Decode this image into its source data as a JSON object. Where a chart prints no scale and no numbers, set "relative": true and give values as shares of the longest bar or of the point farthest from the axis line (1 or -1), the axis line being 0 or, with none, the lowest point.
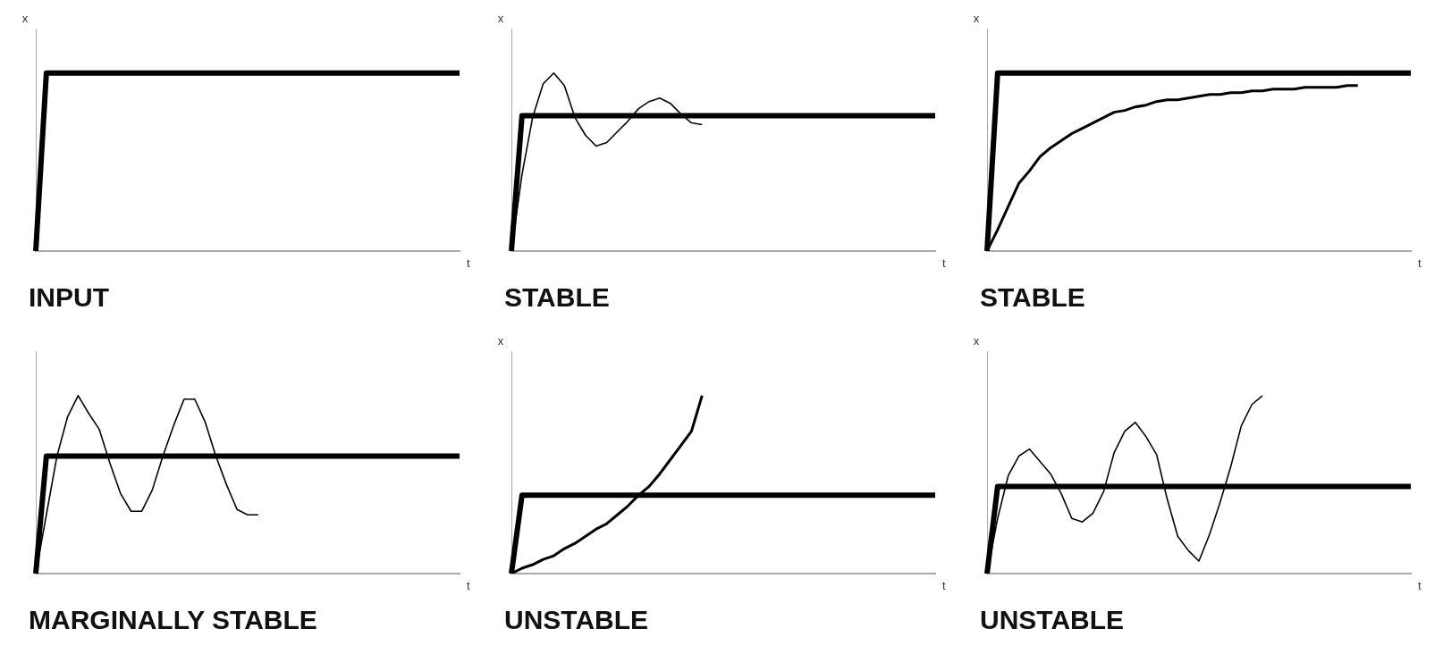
{
  "chart_data": [
    {
      "type": "line",
      "relative": true,
      "title": "INPUT",
      "xlabel": "t",
      "ylabel": "x",
      "categories": [
        null,
        null,
        null,
        null,
        null,
        null,
        null,
        null,
        null,
        null,
        null,
        null,
        null,
        null,
        null,
        null,
        null,
        null,
        null,
        null,
        null,
        null,
        null,
        null,
        null,
        null,
        null,
        null,
        null,
        null,
        null,
        null,
        null,
        null,
        null,
        null,
        null,
        null,
        null,
        null,
        null
      ],
      "series": [
        {
          "color": "#000000",
          "values": [
            0,
            1,
            1,
            1,
            1,
            1,
            1,
            1,
            1,
            1,
            1,
            1,
            1,
            1,
            1,
            1,
            1,
            1,
            1,
            1,
            1,
            1,
            1,
            1,
            1,
            1,
            1,
            1,
            1,
            1,
            1,
            1,
            1,
            1,
            1,
            1,
            1,
            1,
            1,
            1,
            1
          ]
        }
      ]
    },
    {
      "type": "line",
      "relative": true,
      "title": "STABLE",
      "xlabel": "t",
      "ylabel": "x",
      "categories": [
        null,
        null,
        null,
        null,
        null,
        null,
        null,
        null,
        null,
        null,
        null,
        null,
        null,
        null,
        null,
        null,
        null,
        null,
        null,
        null,
        null,
        null,
        null,
        null,
        null,
        null,
        null,
        null,
        null,
        null,
        null,
        null,
        null,
        null,
        null,
        null,
        null,
        null,
        null,
        null,
        null
      ],
      "series": [
        {
          "color": "#000000",
          "values": [
            0,
            0.76,
            0.76,
            0.76,
            0.76,
            0.76,
            0.76,
            0.76,
            0.76,
            0.76,
            0.76,
            0.76,
            0.76,
            0.76,
            0.76,
            0.76,
            0.76,
            0.76,
            0.76,
            0.76,
            0.76,
            0.76,
            0.76,
            0.76,
            0.76,
            0.76,
            0.76,
            0.76,
            0.76,
            0.76,
            0.76,
            0.76,
            0.76,
            0.76,
            0.76,
            0.76,
            0.76,
            0.76,
            0.76,
            0.76,
            0.76
          ]
        },
        {
          "color": "#000000",
          "values": [
            0,
            0.43,
            0.75,
            0.94,
            1,
            0.93,
            0.75,
            0.65,
            0.59,
            0.61,
            0.67,
            0.73,
            0.8,
            0.84,
            0.86,
            0.83,
            0.77,
            0.72,
            0.71,
            null,
            null,
            null,
            null,
            null,
            null,
            null,
            null,
            null,
            null,
            null,
            null,
            null,
            null,
            null,
            null,
            null,
            null,
            null,
            null,
            null,
            null
          ]
        }
      ]
    },
    {
      "type": "line",
      "relative": true,
      "title": "STABLE",
      "xlabel": "t",
      "ylabel": "x",
      "categories": [
        null,
        null,
        null,
        null,
        null,
        null,
        null,
        null,
        null,
        null,
        null,
        null,
        null,
        null,
        null,
        null,
        null,
        null,
        null,
        null,
        null,
        null,
        null,
        null,
        null,
        null,
        null,
        null,
        null,
        null,
        null,
        null,
        null,
        null,
        null,
        null,
        null,
        null,
        null,
        null,
        null
      ],
      "series": [
        {
          "color": "#000000",
          "values": [
            0,
            1,
            1,
            1,
            1,
            1,
            1,
            1,
            1,
            1,
            1,
            1,
            1,
            1,
            1,
            1,
            1,
            1,
            1,
            1,
            1,
            1,
            1,
            1,
            1,
            1,
            1,
            1,
            1,
            1,
            1,
            1,
            1,
            1,
            1,
            1,
            1,
            1,
            1,
            1,
            1
          ]
        },
        {
          "color": "#000000",
          "values": [
            0,
            0.12,
            0.25,
            0.38,
            0.45,
            0.53,
            0.58,
            0.62,
            0.66,
            0.69,
            0.72,
            0.75,
            0.78,
            0.79,
            0.81,
            0.82,
            0.84,
            0.85,
            0.85,
            0.86,
            0.87,
            0.88,
            0.88,
            0.89,
            0.89,
            0.9,
            0.9,
            0.91,
            0.91,
            0.91,
            0.92,
            0.92,
            0.92,
            0.92,
            0.93,
            0.93,
            null,
            null,
            null,
            null,
            null
          ]
        }
      ]
    },
    {
      "type": "line",
      "relative": true,
      "title": "MARGINALLY STABLE",
      "xlabel": "t",
      "categories": [
        null,
        null,
        null,
        null,
        null,
        null,
        null,
        null,
        null,
        null,
        null,
        null,
        null,
        null,
        null,
        null,
        null,
        null,
        null,
        null,
        null,
        null,
        null,
        null,
        null,
        null,
        null,
        null,
        null,
        null,
        null,
        null,
        null,
        null,
        null,
        null,
        null,
        null,
        null,
        null,
        null
      ],
      "series": [
        {
          "color": "#000000",
          "values": [
            0,
            0.66,
            0.66,
            0.66,
            0.66,
            0.66,
            0.66,
            0.66,
            0.66,
            0.66,
            0.66,
            0.66,
            0.66,
            0.66,
            0.66,
            0.66,
            0.66,
            0.66,
            0.66,
            0.66,
            0.66,
            0.66,
            0.66,
            0.66,
            0.66,
            0.66,
            0.66,
            0.66,
            0.66,
            0.66,
            0.66,
            0.66,
            0.66,
            0.66,
            0.66,
            0.66,
            0.66,
            0.66,
            0.66,
            0.66,
            0.66
          ]
        },
        {
          "color": "#000000",
          "values": [
            0,
            0.33,
            0.66,
            0.88,
            1,
            0.9,
            0.81,
            0.62,
            0.45,
            0.35,
            0.35,
            0.47,
            0.66,
            0.83,
            0.98,
            0.98,
            0.85,
            0.66,
            0.5,
            0.36,
            0.33,
            0.33,
            null,
            null,
            null,
            null,
            null,
            null,
            null,
            null,
            null,
            null,
            null,
            null,
            null,
            null,
            null,
            null,
            null,
            null,
            null
          ]
        }
      ]
    },
    {
      "type": "line",
      "relative": true,
      "title": "UNSTABLE",
      "xlabel": "t",
      "ylabel": "x",
      "categories": [
        null,
        null,
        null,
        null,
        null,
        null,
        null,
        null,
        null,
        null,
        null,
        null,
        null,
        null,
        null,
        null,
        null,
        null,
        null,
        null,
        null,
        null,
        null,
        null,
        null,
        null,
        null,
        null,
        null,
        null,
        null,
        null,
        null,
        null,
        null,
        null,
        null,
        null,
        null,
        null,
        null
      ],
      "series": [
        {
          "color": "#000000",
          "values": [
            0,
            0.44,
            0.44,
            0.44,
            0.44,
            0.44,
            0.44,
            0.44,
            0.44,
            0.44,
            0.44,
            0.44,
            0.44,
            0.44,
            0.44,
            0.44,
            0.44,
            0.44,
            0.44,
            0.44,
            0.44,
            0.44,
            0.44,
            0.44,
            0.44,
            0.44,
            0.44,
            0.44,
            0.44,
            0.44,
            0.44,
            0.44,
            0.44,
            0.44,
            0.44,
            0.44,
            0.44,
            0.44,
            0.44,
            0.44,
            0.44
          ]
        },
        {
          "color": "#000000",
          "values": [
            0,
            0.03,
            0.05,
            0.08,
            0.1,
            0.14,
            0.17,
            0.21,
            0.25,
            0.28,
            0.33,
            0.38,
            0.44,
            0.49,
            0.56,
            0.64,
            0.72,
            0.8,
            1,
            null,
            null,
            null,
            null,
            null,
            null,
            null,
            null,
            null,
            null,
            null,
            null,
            null,
            null,
            null,
            null,
            null,
            null,
            null,
            null,
            null,
            null
          ]
        }
      ]
    },
    {
      "type": "line",
      "relative": true,
      "title": "UNSTABLE",
      "xlabel": "t",
      "ylabel": "x",
      "categories": [
        null,
        null,
        null,
        null,
        null,
        null,
        null,
        null,
        null,
        null,
        null,
        null,
        null,
        null,
        null,
        null,
        null,
        null,
        null,
        null,
        null,
        null,
        null,
        null,
        null,
        null,
        null,
        null,
        null,
        null,
        null,
        null,
        null,
        null,
        null,
        null,
        null,
        null,
        null,
        null,
        null
      ],
      "series": [
        {
          "color": "#000000",
          "values": [
            0,
            0.49,
            0.49,
            0.49,
            0.49,
            0.49,
            0.49,
            0.49,
            0.49,
            0.49,
            0.49,
            0.49,
            0.49,
            0.49,
            0.49,
            0.49,
            0.49,
            0.49,
            0.49,
            0.49,
            0.49,
            0.49,
            0.49,
            0.49,
            0.49,
            0.49,
            0.49,
            0.49,
            0.49,
            0.49,
            0.49,
            0.49,
            0.49,
            0.49,
            0.49,
            0.49,
            0.49,
            0.49,
            0.49,
            0.49,
            0.49
          ]
        },
        {
          "color": "#000000",
          "values": [
            0,
            0.31,
            0.55,
            0.66,
            0.7,
            0.63,
            0.56,
            0.45,
            0.31,
            0.29,
            0.34,
            0.46,
            0.68,
            0.8,
            0.85,
            0.77,
            0.67,
            0.42,
            0.21,
            0.13,
            0.07,
            0.22,
            0.4,
            0.6,
            0.83,
            0.95,
            1,
            null,
            null,
            null,
            null,
            null,
            null,
            null,
            null,
            null,
            null,
            null,
            null,
            null,
            null
          ]
        }
      ]
    }
  ]
}
